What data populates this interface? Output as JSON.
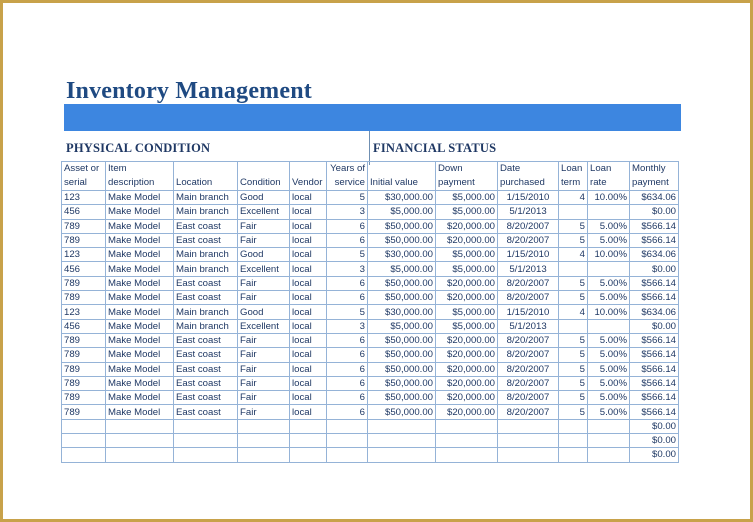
{
  "title": "Inventory Management",
  "colors": {
    "title": "#1f4a82",
    "band": "#3d86e0",
    "frame": "#c8a24a",
    "text": "#1f3864",
    "grid": "#95b3d7"
  },
  "sections": {
    "physical": "PHYSICAL CONDITION",
    "financial": "FINANCIAL STATUS"
  },
  "headers": [
    [
      "Asset or",
      "serial"
    ],
    [
      "Item",
      "description"
    ],
    [
      "",
      "Location"
    ],
    [
      "",
      "Condition"
    ],
    [
      "",
      "Vendor"
    ],
    [
      "Years of",
      "service"
    ],
    [
      "",
      "Initial value"
    ],
    [
      "Down",
      "payment"
    ],
    [
      "Date",
      "purchased"
    ],
    [
      "Loan",
      "term"
    ],
    [
      "Loan",
      "rate"
    ],
    [
      "Monthly",
      "payment"
    ]
  ],
  "rows": [
    [
      "123",
      "Make Model",
      "Main branch",
      "Good",
      "local",
      "5",
      "$30,000.00",
      "$5,000.00",
      "1/15/2010",
      "4",
      "10.00%",
      "$634.06"
    ],
    [
      "456",
      "Make Model",
      "Main branch",
      "Excellent",
      "local",
      "3",
      "$5,000.00",
      "$5,000.00",
      "5/1/2013",
      "",
      "",
      "$0.00"
    ],
    [
      "789",
      "Make Model",
      "East coast",
      "Fair",
      "local",
      "6",
      "$50,000.00",
      "$20,000.00",
      "8/20/2007",
      "5",
      "5.00%",
      "$566.14"
    ],
    [
      "789",
      "Make Model",
      "East coast",
      "Fair",
      "local",
      "6",
      "$50,000.00",
      "$20,000.00",
      "8/20/2007",
      "5",
      "5.00%",
      "$566.14"
    ],
    [
      "123",
      "Make Model",
      "Main branch",
      "Good",
      "local",
      "5",
      "$30,000.00",
      "$5,000.00",
      "1/15/2010",
      "4",
      "10.00%",
      "$634.06"
    ],
    [
      "456",
      "Make Model",
      "Main branch",
      "Excellent",
      "local",
      "3",
      "$5,000.00",
      "$5,000.00",
      "5/1/2013",
      "",
      "",
      "$0.00"
    ],
    [
      "789",
      "Make Model",
      "East coast",
      "Fair",
      "local",
      "6",
      "$50,000.00",
      "$20,000.00",
      "8/20/2007",
      "5",
      "5.00%",
      "$566.14"
    ],
    [
      "789",
      "Make Model",
      "East coast",
      "Fair",
      "local",
      "6",
      "$50,000.00",
      "$20,000.00",
      "8/20/2007",
      "5",
      "5.00%",
      "$566.14"
    ],
    [
      "123",
      "Make Model",
      "Main branch",
      "Good",
      "local",
      "5",
      "$30,000.00",
      "$5,000.00",
      "1/15/2010",
      "4",
      "10.00%",
      "$634.06"
    ],
    [
      "456",
      "Make Model",
      "Main branch",
      "Excellent",
      "local",
      "3",
      "$5,000.00",
      "$5,000.00",
      "5/1/2013",
      "",
      "",
      "$0.00"
    ],
    [
      "789",
      "Make Model",
      "East coast",
      "Fair",
      "local",
      "6",
      "$50,000.00",
      "$20,000.00",
      "8/20/2007",
      "5",
      "5.00%",
      "$566.14"
    ],
    [
      "789",
      "Make Model",
      "East coast",
      "Fair",
      "local",
      "6",
      "$50,000.00",
      "$20,000.00",
      "8/20/2007",
      "5",
      "5.00%",
      "$566.14"
    ],
    [
      "789",
      "Make Model",
      "East coast",
      "Fair",
      "local",
      "6",
      "$50,000.00",
      "$20,000.00",
      "8/20/2007",
      "5",
      "5.00%",
      "$566.14"
    ],
    [
      "789",
      "Make Model",
      "East coast",
      "Fair",
      "local",
      "6",
      "$50,000.00",
      "$20,000.00",
      "8/20/2007",
      "5",
      "5.00%",
      "$566.14"
    ],
    [
      "789",
      "Make Model",
      "East coast",
      "Fair",
      "local",
      "6",
      "$50,000.00",
      "$20,000.00",
      "8/20/2007",
      "5",
      "5.00%",
      "$566.14"
    ],
    [
      "789",
      "Make Model",
      "East coast",
      "Fair",
      "local",
      "6",
      "$50,000.00",
      "$20,000.00",
      "8/20/2007",
      "5",
      "5.00%",
      "$566.14"
    ],
    [
      "",
      "",
      "",
      "",
      "",
      "",
      "",
      "",
      "",
      "",
      "",
      "$0.00"
    ],
    [
      "",
      "",
      "",
      "",
      "",
      "",
      "",
      "",
      "",
      "",
      "",
      "$0.00"
    ],
    [
      "",
      "",
      "",
      "",
      "",
      "",
      "",
      "",
      "",
      "",
      "",
      "$0.00"
    ]
  ]
}
